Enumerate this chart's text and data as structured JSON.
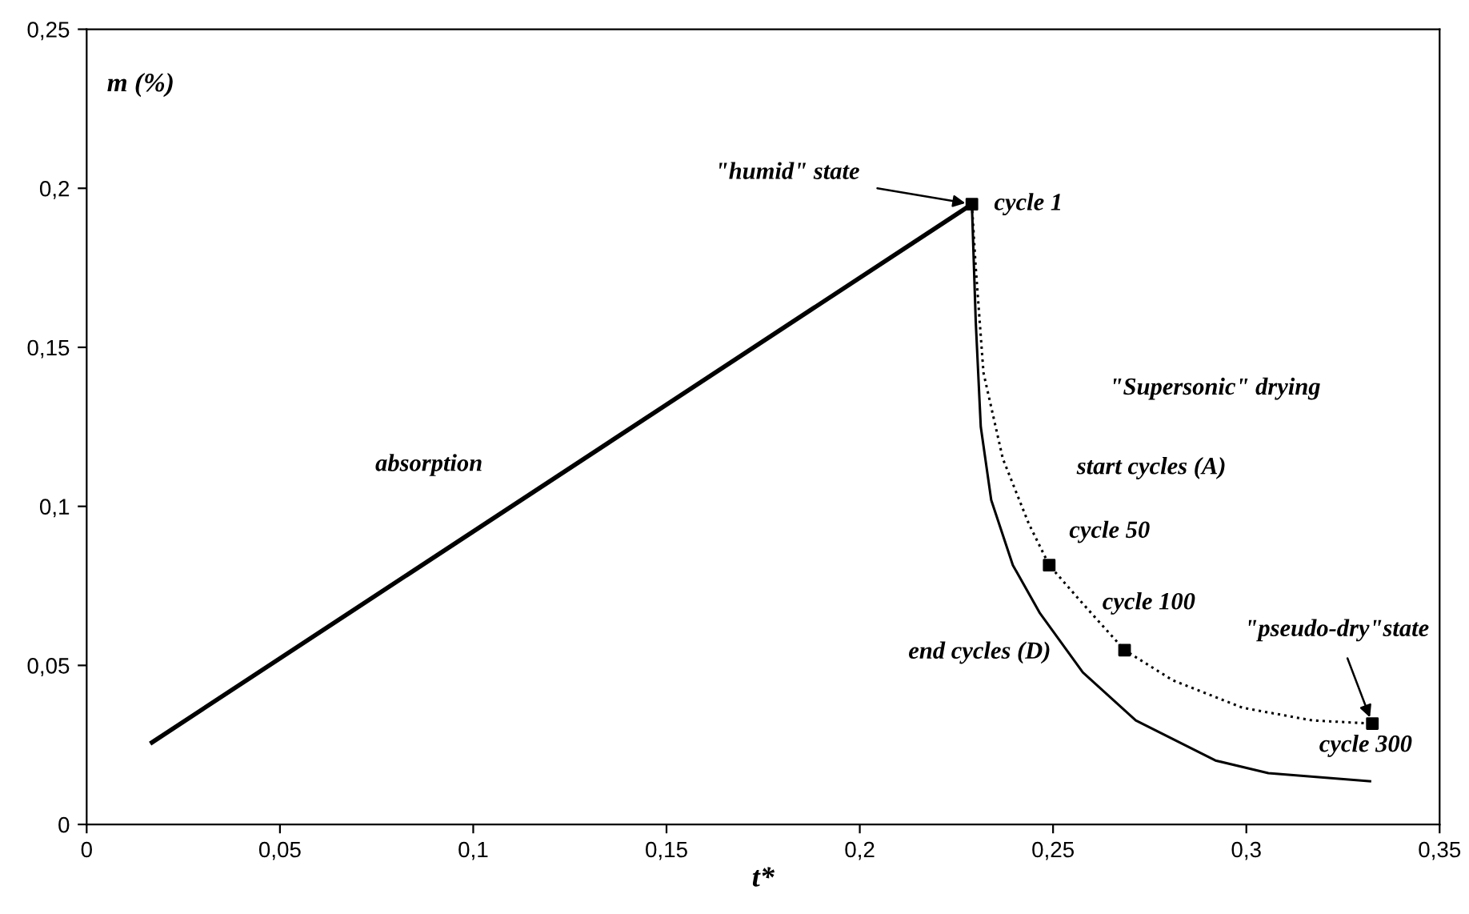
{
  "chart_data": {
    "type": "line",
    "xlabel": "t*",
    "ylabel": "m (%)",
    "xlim": [
      0,
      0.35
    ],
    "ylim": [
      0,
      0.25
    ],
    "xticks": [
      0,
      {
        "value": 0.05,
        "label": "0,05"
      },
      {
        "value": 0.1,
        "label": "0,1"
      },
      {
        "value": 0.15,
        "label": "0,15"
      },
      {
        "value": 0.2,
        "label": "0,2"
      },
      {
        "value": 0.25,
        "label": "0,25"
      },
      {
        "value": 0.3,
        "label": "0,3"
      },
      {
        "value": 0.35,
        "label": "0,35"
      }
    ],
    "yticks": [
      0,
      {
        "value": 0.05,
        "label": "0,05"
      },
      {
        "value": 0.1,
        "label": "0,1"
      },
      {
        "value": 0.15,
        "label": "0,15"
      },
      {
        "value": 0.2,
        "label": "0,2"
      },
      {
        "value": 0.25,
        "label": "0,25"
      }
    ],
    "grid": false,
    "legend": false,
    "series": [
      {
        "color": "#000000",
        "line_style": "solid",
        "marker": "none",
        "x": [
          0.0169,
          0.229
        ],
        "values": [
          0.0258,
          0.195
        ]
      },
      {
        "color": "#000000",
        "line_style": "solid",
        "marker": "none",
        "x": [
          0.229,
          0.23,
          0.2313,
          0.234,
          0.2396,
          0.2466,
          0.2577,
          0.2714,
          0.292,
          0.3057,
          0.332
        ],
        "values": [
          0.195,
          0.158,
          0.125,
          0.102,
          0.0815,
          0.0664,
          0.0478,
          0.0327,
          0.0201,
          0.0161,
          0.0136
        ]
      },
      {
        "color": "#000000",
        "line_style": "dotted",
        "marker": "none",
        "x": [
          0.229,
          0.23,
          0.232,
          0.237,
          0.2437,
          0.249,
          0.2577,
          0.2685,
          0.281,
          0.299,
          0.317,
          0.3326
        ],
        "values": [
          0.195,
          0.175,
          0.142,
          0.115,
          0.0946,
          0.0815,
          0.0694,
          0.0548,
          0.0453,
          0.0367,
          0.0327,
          0.0317
        ]
      },
      {
        "type": "scatter",
        "color": "#000000",
        "marker": "square",
        "x": [
          0.229,
          0.249,
          0.2685,
          0.3326
        ],
        "values": [
          0.195,
          0.0815,
          0.0548,
          0.0317
        ]
      }
    ],
    "annotations": [
      "absorption",
      {
        "text": "\"humid\" state",
        "x": 0.229,
        "y": 0.195
      },
      {
        "text": "cycle 1",
        "x": 0.229,
        "y": 0.195
      },
      "\"Supersonic\" drying",
      "start cycles (A)",
      {
        "text": "cycle 50",
        "x": 0.249,
        "y": 0.0815
      },
      {
        "text": "cycle 100",
        "x": 0.2685,
        "y": 0.0548
      },
      "end cycles (D)",
      {
        "text": "\"pseudo-dry\"state",
        "x": 0.3326,
        "y": 0.0317
      },
      {
        "text": "cycle 300",
        "x": 0.3326,
        "y": 0.0317
      }
    ]
  }
}
